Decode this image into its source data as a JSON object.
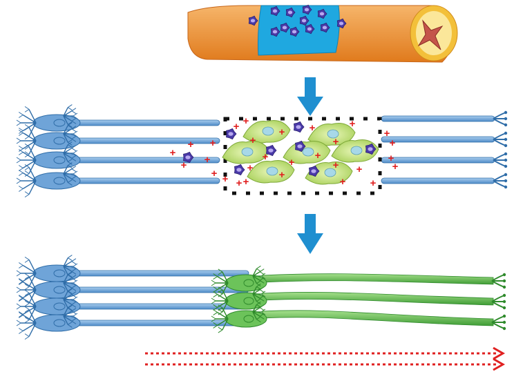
{
  "figure": {
    "description_type": "schematic",
    "colors": {
      "tube": "#f0a04a",
      "tube_dark": "#e07a1c",
      "patch": "#1fa8e0",
      "native_neuron": "#6fa4d8",
      "native_neuron_dark": "#2f6da8",
      "scaffold_cell": "#b8dc6a",
      "scaffold_cell_dark": "#7da838",
      "regenerated_neuron": "#6cc35a",
      "regenerated_neuron_dark": "#2f8a2c",
      "stem_cell": "#4a3aa8",
      "charge": "#e02020",
      "arrow": "#1f8fd0",
      "signal": "#e02020",
      "border": "#111111"
    },
    "icons": [
      "down-arrow-icon",
      "down-arrow-icon",
      "signal-arrow-icon"
    ]
  }
}
